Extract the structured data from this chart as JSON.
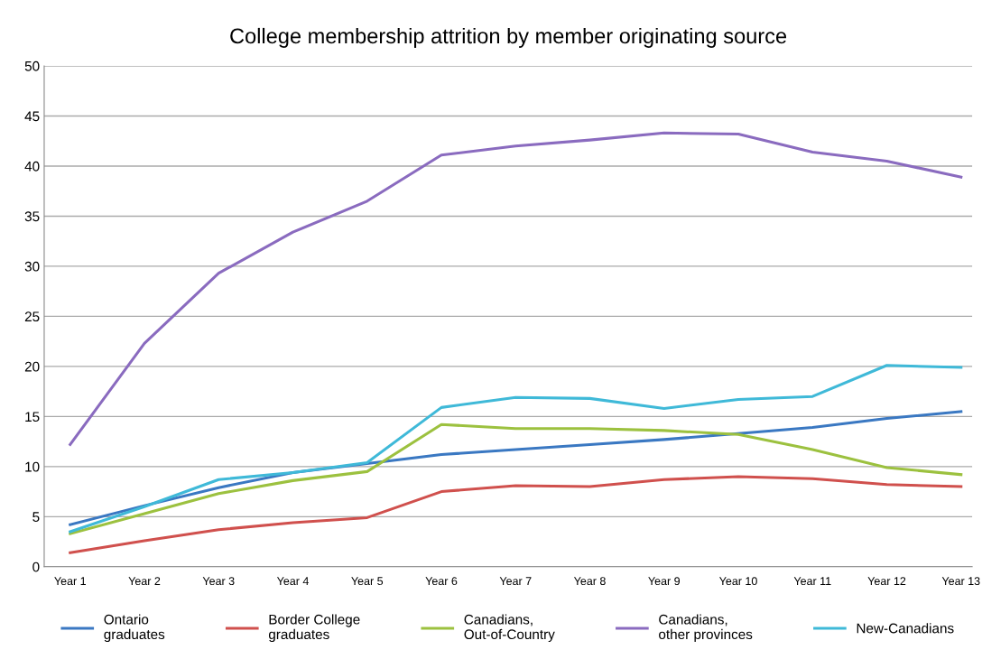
{
  "chart_data": {
    "type": "line",
    "title": "College membership attrition by member originating source",
    "categories": [
      "Year 1",
      "Year 2",
      "Year 3",
      "Year 4",
      "Year 5",
      "Year 6",
      "Year 7",
      "Year 8",
      "Year 9",
      "Year 10",
      "Year 11",
      "Year 12",
      "Year 13"
    ],
    "series": [
      {
        "name": "Ontario\ngraduates",
        "color": "#3a78c2",
        "values": [
          4.2,
          6.1,
          7.9,
          9.4,
          10.3,
          11.2,
          11.7,
          12.2,
          12.7,
          13.3,
          13.9,
          14.8,
          15.5
        ]
      },
      {
        "name": "Border College\ngraduates",
        "color": "#d0504d",
        "values": [
          1.4,
          2.6,
          3.7,
          4.4,
          4.9,
          7.5,
          8.1,
          8.0,
          8.7,
          9.0,
          8.8,
          8.2,
          8.0
        ]
      },
      {
        "name": "Canadians,\nOut-of-Country",
        "color": "#9cc13f",
        "values": [
          3.3,
          5.3,
          7.3,
          8.6,
          9.5,
          14.2,
          13.8,
          13.8,
          13.6,
          13.2,
          11.7,
          9.9,
          9.2
        ]
      },
      {
        "name": "Canadians,\nother provinces",
        "color": "#8a6bbf",
        "values": [
          12.2,
          22.3,
          29.3,
          33.4,
          36.5,
          41.1,
          42.0,
          42.6,
          43.3,
          43.2,
          41.4,
          40.5,
          38.9
        ]
      },
      {
        "name": "New-Canadians",
        "color": "#3fb9d8",
        "values": [
          3.5,
          6.0,
          8.7,
          9.4,
          10.4,
          15.9,
          16.9,
          16.8,
          15.8,
          16.7,
          17.0,
          20.1,
          19.9
        ]
      }
    ],
    "ylim": [
      0,
      50
    ],
    "yticks": [
      0,
      5,
      10,
      15,
      20,
      25,
      30,
      35,
      40,
      45,
      50
    ],
    "grid": "y",
    "legend": "bottom",
    "marker": "none",
    "line_style": "solid"
  }
}
